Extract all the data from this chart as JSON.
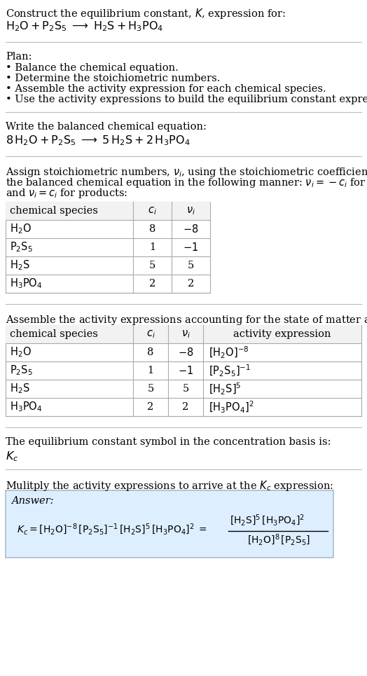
{
  "title_line1": "Construct the equilibrium constant, $K$, expression for:",
  "title_line2": "$\\mathrm{H_2O + P_2S_5 \\;\\longrightarrow\\; H_2S + H_3PO_4}$",
  "plan_header": "Plan:",
  "plan_bullets": [
    "• Balance the chemical equation.",
    "• Determine the stoichiometric numbers.",
    "• Assemble the activity expression for each chemical species.",
    "• Use the activity expressions to build the equilibrium constant expression."
  ],
  "balanced_header": "Write the balanced chemical equation:",
  "balanced_eq": "$\\mathrm{8\\,H_2O + P_2S_5 \\;\\longrightarrow\\; 5\\,H_2S + 2\\,H_3PO_4}$",
  "stoich_intro_lines": [
    "Assign stoichiometric numbers, $\\nu_i$, using the stoichiometric coefficients, $c_i$, from",
    "the balanced chemical equation in the following manner: $\\nu_i = -c_i$ for reactants",
    "and $\\nu_i = c_i$ for products:"
  ],
  "table1_headers": [
    "chemical species",
    "$c_i$",
    "$\\nu_i$"
  ],
  "table1_rows": [
    [
      "$\\mathrm{H_2O}$",
      "8",
      "$-8$"
    ],
    [
      "$\\mathrm{P_2S_5}$",
      "1",
      "$-1$"
    ],
    [
      "$\\mathrm{H_2S}$",
      "5",
      "5"
    ],
    [
      "$\\mathrm{H_3PO_4}$",
      "2",
      "2"
    ]
  ],
  "activity_intro": "Assemble the activity expressions accounting for the state of matter and $\\nu_i$:",
  "table2_headers": [
    "chemical species",
    "$c_i$",
    "$\\nu_i$",
    "activity expression"
  ],
  "table2_rows": [
    [
      "$\\mathrm{H_2O}$",
      "8",
      "$-8$",
      "$[\\mathrm{H_2O}]^{-8}$"
    ],
    [
      "$\\mathrm{P_2S_5}$",
      "1",
      "$-1$",
      "$[\\mathrm{P_2S_5}]^{-1}$"
    ],
    [
      "$\\mathrm{H_2S}$",
      "5",
      "5",
      "$[\\mathrm{H_2S}]^5$"
    ],
    [
      "$\\mathrm{H_3PO_4}$",
      "2",
      "2",
      "$[\\mathrm{H_3PO_4}]^2$"
    ]
  ],
  "kc_line1": "The equilibrium constant symbol in the concentration basis is:",
  "kc_symbol": "$K_c$",
  "multiply_line": "Mulitply the activity expressions to arrive at the $K_c$ expression:",
  "answer_label": "Answer:",
  "answer_eq_left": "$K_c = [\\mathrm{H_2O}]^{-8}\\,[\\mathrm{P_2S_5}]^{-1}\\,[\\mathrm{H_2S}]^5\\,[\\mathrm{H_3PO_4}]^2 = $",
  "answer_frac_num": "$[\\mathrm{H_2S}]^5\\,[\\mathrm{H_3PO_4}]^2$",
  "answer_frac_den": "$[\\mathrm{H_2O}]^8\\,[\\mathrm{P_2S_5}]$",
  "answer_box_color": "#ddeeff",
  "answer_box_border": "#aabbcc",
  "bg_color": "#ffffff",
  "separator_color": "#bbbbbb"
}
